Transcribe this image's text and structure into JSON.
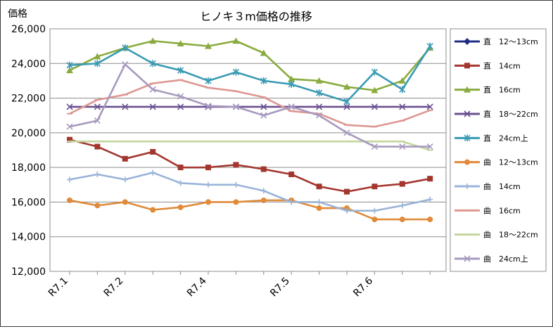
{
  "chart_data": {
    "type": "line",
    "title": "ヒノキ３m価格の推移",
    "ylabel": "価格",
    "xlabel": "",
    "ylim": [
      12000,
      26000
    ],
    "yticks": [
      "12,000",
      "14,000",
      "16,000",
      "18,000",
      "20,000",
      "22,000",
      "24,000",
      "26,000"
    ],
    "x_tick_labels": [
      {
        "label": "R7.1",
        "index": 0
      },
      {
        "label": "R7.2",
        "index": 2
      },
      {
        "label": "R7.4",
        "index": 5
      },
      {
        "label": "R7.5",
        "index": 8
      },
      {
        "label": "R7.6",
        "index": 11
      }
    ],
    "n_points": 14,
    "grid": "horizontal",
    "legend_position": "right",
    "series": [
      {
        "name": "直　12～13cm",
        "color": "#1f2d86",
        "marker": "diamond",
        "values": [
          null,
          null,
          null,
          null,
          null,
          null,
          null,
          null,
          null,
          null,
          null,
          null,
          null,
          null
        ]
      },
      {
        "name": "直　14cm",
        "color": "#a3362f",
        "marker": "square",
        "values": [
          19600,
          19200,
          18500,
          18900,
          18000,
          18000,
          18150,
          17900,
          17600,
          16900,
          16600,
          16900,
          17050,
          17350
        ]
      },
      {
        "name": "直　16cm",
        "color": "#8aab3f",
        "marker": "triangle",
        "values": [
          23600,
          24400,
          24900,
          25300,
          25150,
          25000,
          25300,
          24600,
          23100,
          23000,
          22650,
          22450,
          23000,
          24900
        ]
      },
      {
        "name": "直　18～22cm",
        "color": "#6a4f8f",
        "marker": "x",
        "values": [
          21500,
          21500,
          21500,
          21500,
          21500,
          21500,
          21500,
          21500,
          21500,
          21500,
          21500,
          21500,
          21500,
          21500
        ]
      },
      {
        "name": "直　24cm上",
        "color": "#3a9bb3",
        "marker": "star",
        "values": [
          23900,
          24000,
          24900,
          24000,
          23600,
          23000,
          23500,
          23000,
          22800,
          22300,
          21800,
          23500,
          22500,
          25000
        ]
      },
      {
        "name": "曲　12～13cm",
        "color": "#e08a3a",
        "marker": "circle",
        "values": [
          16100,
          15800,
          16000,
          15550,
          15700,
          16000,
          16000,
          16100,
          16100,
          15650,
          15650,
          15000,
          15000,
          15000
        ]
      },
      {
        "name": "曲　14cm",
        "color": "#9ab3d8",
        "marker": "plus",
        "values": [
          17300,
          17600,
          17300,
          17700,
          17100,
          17000,
          17000,
          16650,
          16000,
          16000,
          15500,
          15500,
          15800,
          16150
        ]
      },
      {
        "name": "曲　16cm",
        "color": "#de9791",
        "marker": "dash",
        "values": [
          21100,
          21900,
          22200,
          22850,
          23050,
          22600,
          22400,
          22050,
          21250,
          21100,
          20450,
          20350,
          20700,
          21300
        ]
      },
      {
        "name": "曲　18～22cm",
        "color": "#c3d69c",
        "marker": "dash",
        "values": [
          19500,
          19500,
          19500,
          19500,
          19500,
          19500,
          19500,
          19500,
          19500,
          19500,
          19500,
          19500,
          19500,
          19000
        ]
      },
      {
        "name": "曲　24cm上",
        "color": "#a89abf",
        "marker": "x",
        "values": [
          20350,
          20700,
          23950,
          22500,
          22100,
          21550,
          21500,
          21000,
          21500,
          21000,
          20000,
          19200,
          19200,
          19200
        ]
      }
    ]
  }
}
